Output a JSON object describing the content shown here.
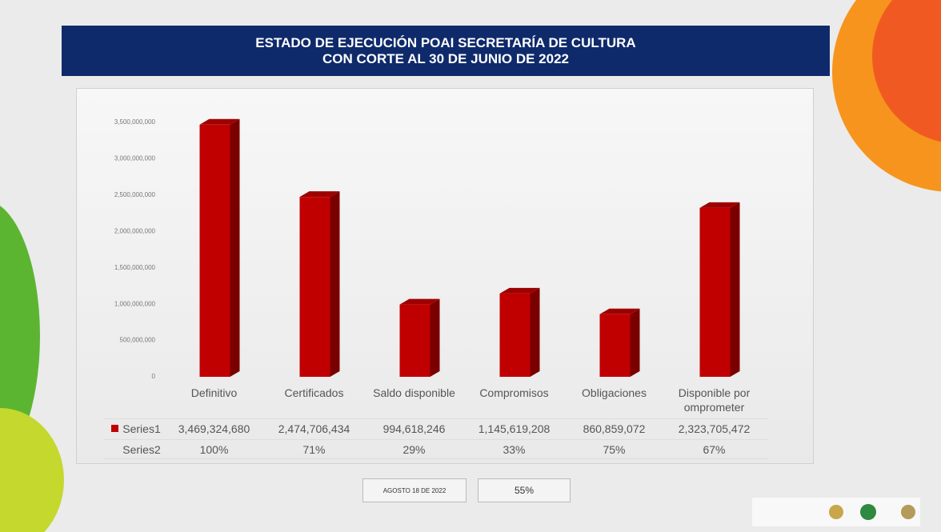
{
  "chart_data": {
    "type": "bar3d",
    "title": "ESTADO DE EJECUCIÓN POAI SECRETARÍA DE CULTURA",
    "subtitle": "CON  CORTE AL 30 DE JUNIO DE 2022",
    "categories": [
      "Definitivo",
      "Certificados",
      "Saldo disponible",
      "Compromisos",
      "Obligaciones",
      "Disponible por omprometer"
    ],
    "series": [
      {
        "name": "Series1",
        "color": "#c00000",
        "values": [
          3469324680,
          2474706434,
          994618246,
          1145619208,
          860859072,
          2323705472
        ],
        "value_labels": [
          "3,469,324,680",
          "2,474,706,434",
          "994,618,246",
          "1,145,619,208",
          "860,859,072",
          "2,323,705,472"
        ]
      },
      {
        "name": "Series2",
        "values": [
          100,
          71,
          29,
          33,
          75,
          67
        ],
        "value_labels": [
          "100%",
          "71%",
          "29%",
          "33%",
          "75%",
          "67%"
        ]
      }
    ],
    "ylim": [
      0,
      3500000000
    ],
    "yticks": [
      0,
      {
        "value": 500000000,
        "label": "500,000,000"
      },
      {
        "value": 1000000000,
        "label": "1,000,000,000"
      },
      {
        "value": 1500000000,
        "label": "1,500,000,000"
      },
      {
        "value": 2000000000,
        "label": "2,000,000,000"
      },
      {
        "value": 2500000000,
        "label": "2,500,000,000"
      },
      {
        "value": 3000000000,
        "label": "3,000,000,000"
      },
      {
        "value": 3500000000,
        "label": "3,500,000,000"
      }
    ],
    "footer": {
      "date": "AGOSTO 18 DE 2022",
      "progress": "55%"
    }
  }
}
